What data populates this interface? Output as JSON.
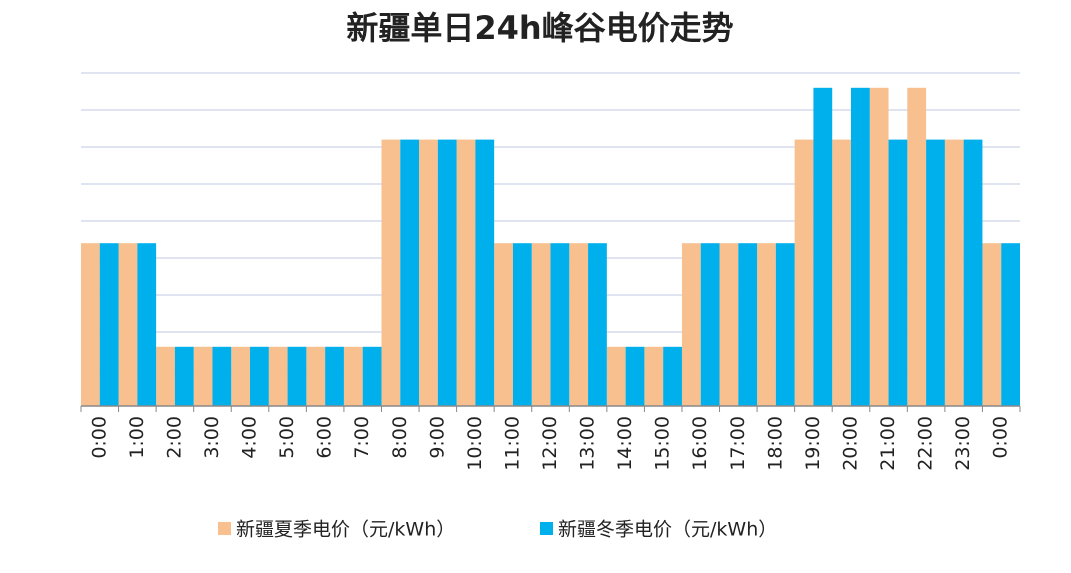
{
  "chart_data": {
    "type": "bar",
    "title": "新疆单日24h峰谷电价走势",
    "categories": [
      "0:00",
      "1:00",
      "2:00",
      "3:00",
      "4:00",
      "5:00",
      "6:00",
      "7:00",
      "8:00",
      "9:00",
      "10:00",
      "11:00",
      "12:00",
      "13:00",
      "14:00",
      "15:00",
      "16:00",
      "17:00",
      "18:00",
      "19:00",
      "20:00",
      "21:00",
      "22:00",
      "23:00",
      "0:00"
    ],
    "series": [
      {
        "name": "新疆夏季电价（元/kWh）",
        "color": "#f7c08e",
        "values": [
          4.4,
          4.4,
          1.6,
          1.6,
          1.6,
          1.6,
          1.6,
          1.6,
          7.2,
          7.2,
          7.2,
          4.4,
          4.4,
          4.4,
          1.6,
          1.6,
          4.4,
          4.4,
          4.4,
          7.2,
          7.2,
          8.6,
          8.6,
          7.2,
          4.4
        ]
      },
      {
        "name": "新疆冬季电价（元/kWh）",
        "color": "#00b0ec",
        "values": [
          4.4,
          4.4,
          1.6,
          1.6,
          1.6,
          1.6,
          1.6,
          1.6,
          7.2,
          7.2,
          7.2,
          4.4,
          4.4,
          4.4,
          1.6,
          1.6,
          4.4,
          4.4,
          4.4,
          8.6,
          8.6,
          7.2,
          7.2,
          7.2,
          4.4
        ]
      }
    ],
    "ylim": [
      0,
      9
    ],
    "yticks": [
      1,
      2,
      3,
      4,
      5,
      6,
      7,
      8,
      9
    ],
    "grid": true
  }
}
